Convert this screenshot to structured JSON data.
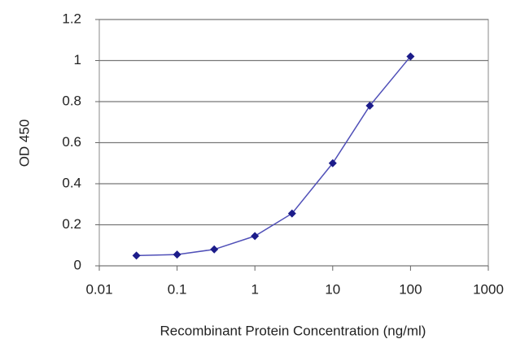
{
  "chart_data": {
    "type": "line",
    "xscale": "log",
    "grid": true,
    "x_label": "Recombinant Protein Concentration (ng/ml)",
    "y_label": "OD 450",
    "x": [
      0.03,
      0.1,
      0.3,
      1,
      3,
      10,
      30,
      100
    ],
    "series": [
      {
        "color": "#1c1c8a",
        "values": [
          0.05,
          0.055,
          0.08,
          0.145,
          0.255,
          0.5,
          0.78,
          1.02
        ]
      }
    ],
    "xlim": [
      0.01,
      1000
    ],
    "xticks": [
      0.01,
      0.1,
      1,
      10,
      100,
      1000
    ],
    "ylim": [
      0,
      1.2
    ],
    "yticks": [
      0,
      0.2,
      0.4,
      0.6,
      0.8,
      1,
      1.2
    ]
  }
}
